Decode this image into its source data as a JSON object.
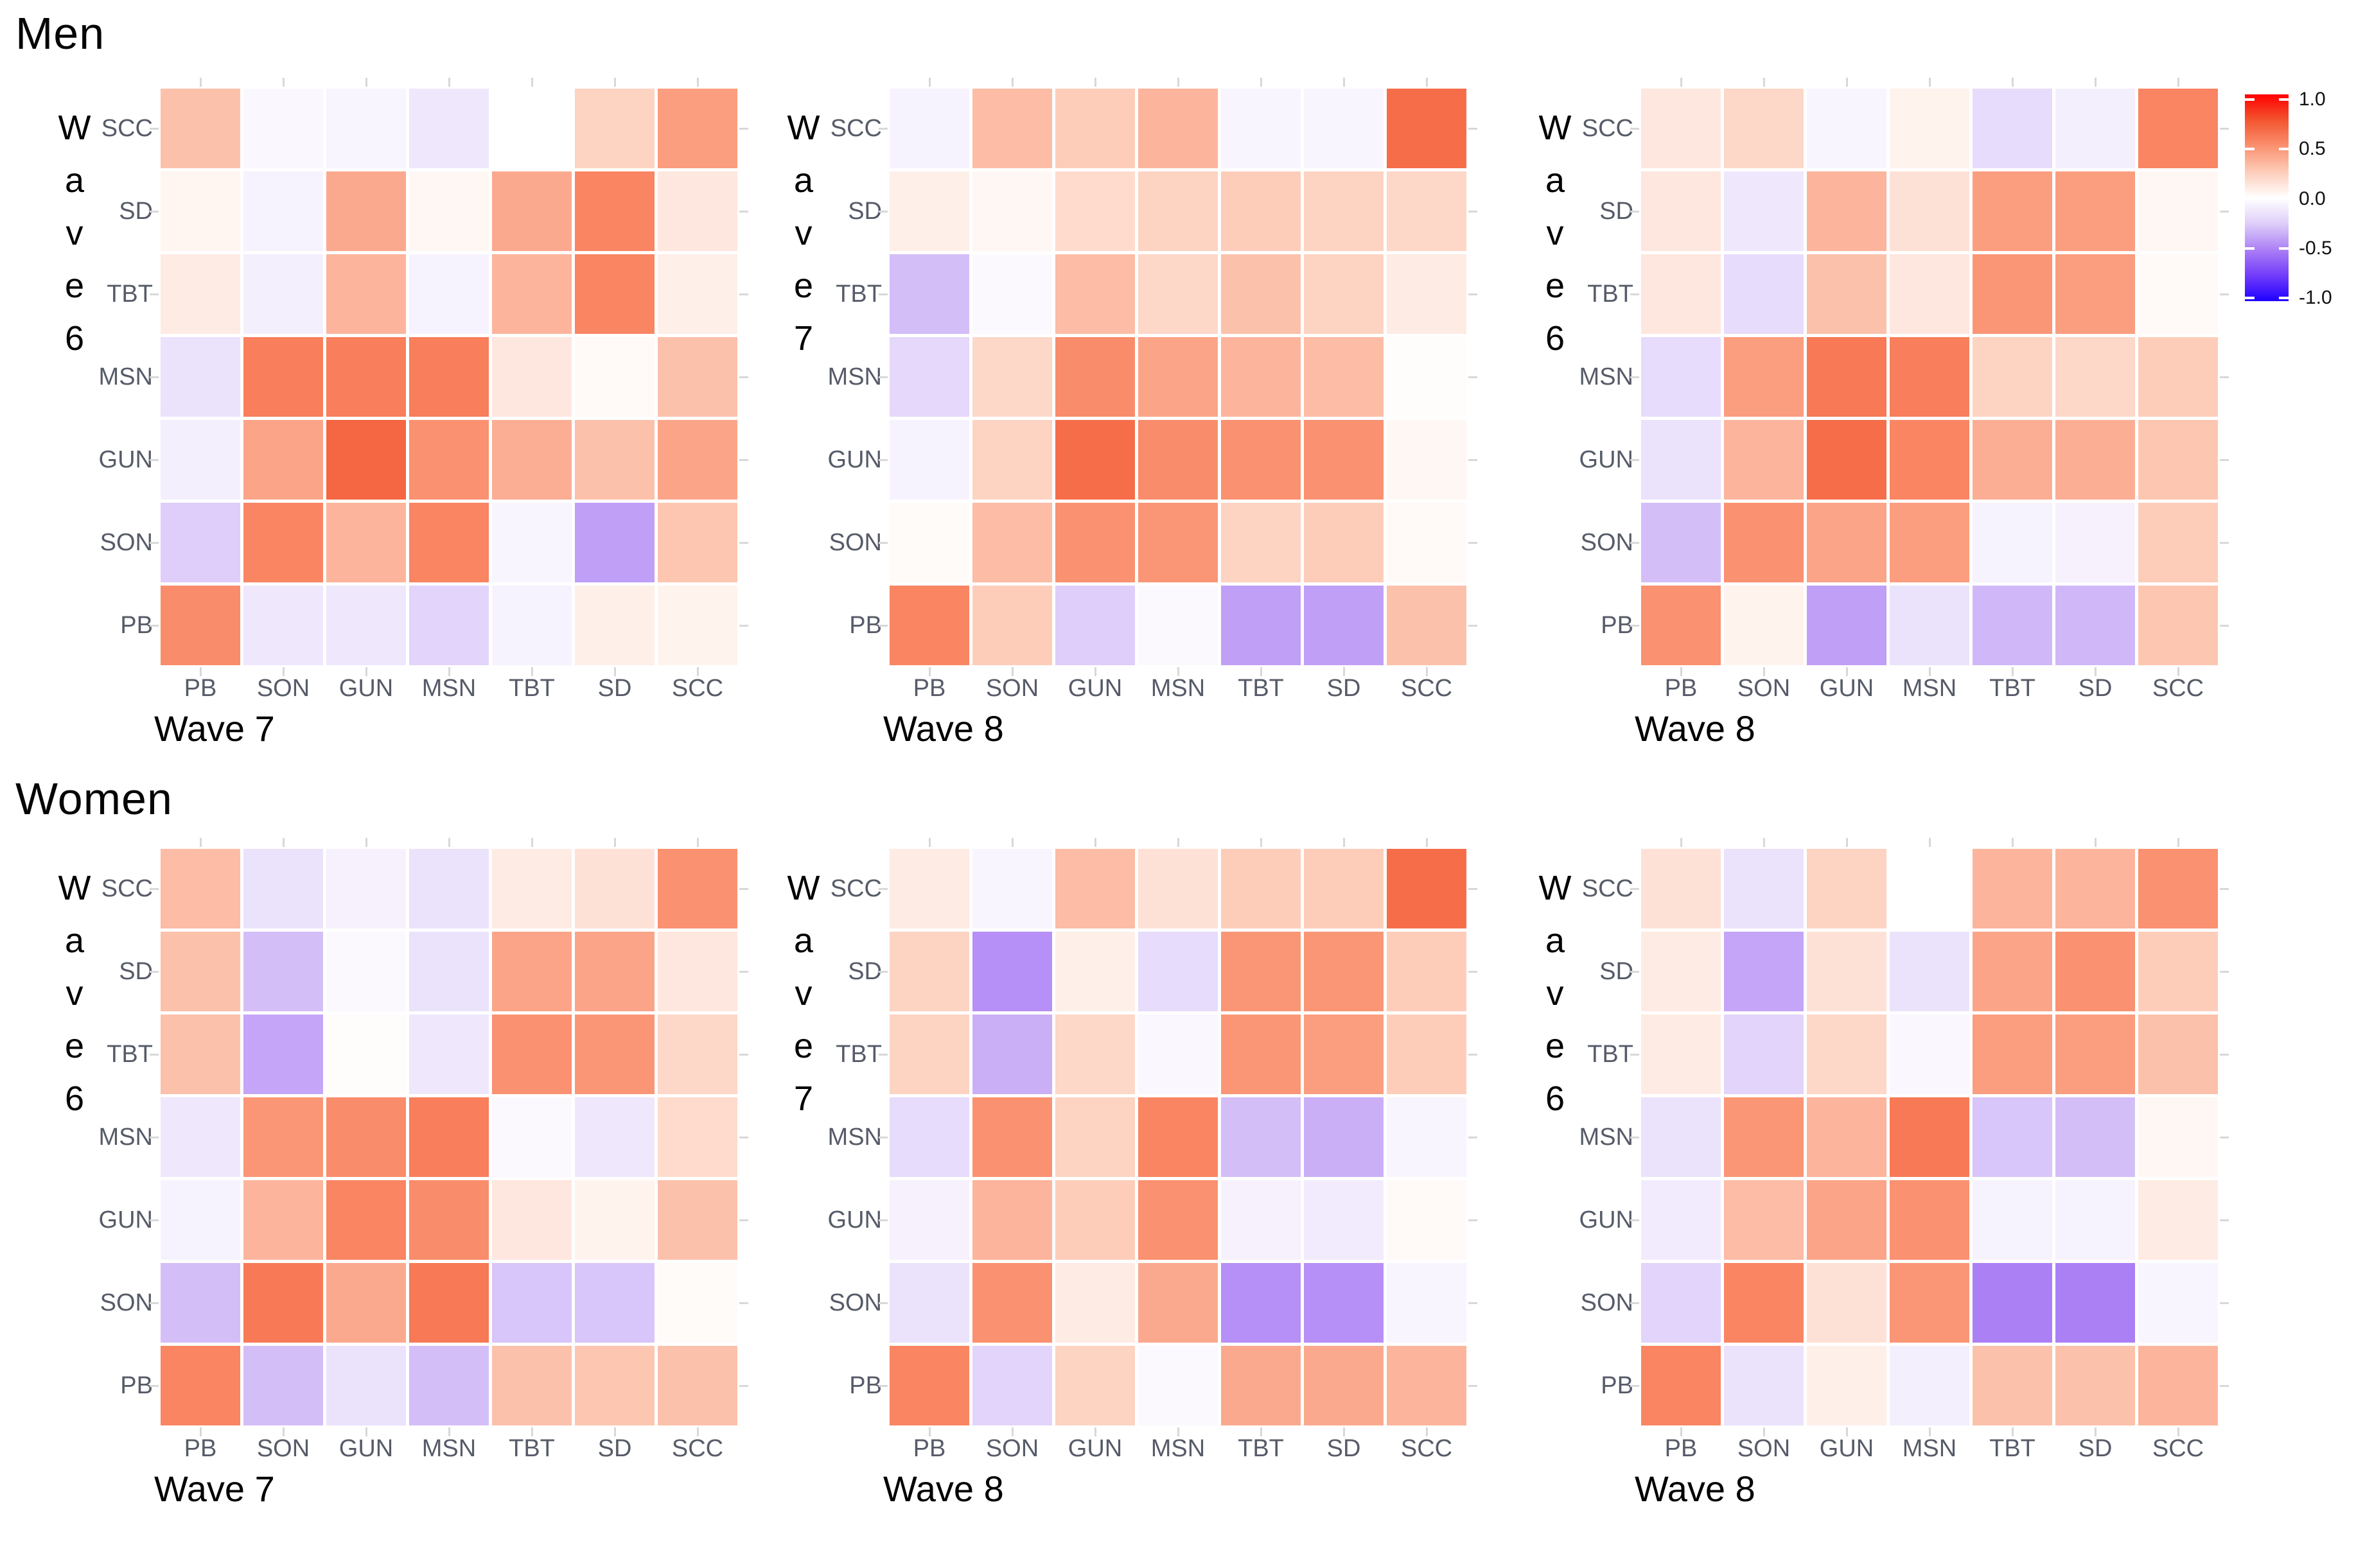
{
  "titles": {
    "men": "Men",
    "women": "Women"
  },
  "legend": {
    "tick_labels": [
      "1.0",
      "0.5",
      "0.0",
      "-0.5",
      "-1.0"
    ],
    "tick_values": [
      1.0,
      0.5,
      0.0,
      -0.5,
      -1.0
    ],
    "high_color": "#ff0000",
    "mid_color": "#ffffff",
    "low_color": "#1e00ff"
  },
  "colormap": {
    "positive_anchors": [
      [
        0,
        "#ffffff"
      ],
      [
        0.25,
        "#fdcdba"
      ],
      [
        0.5,
        "#fa9170"
      ],
      [
        0.75,
        "#f35530"
      ],
      [
        1,
        "#ff0000"
      ]
    ],
    "negative_anchors": [
      [
        0,
        "#ffffff"
      ],
      [
        0.25,
        "#decef9"
      ],
      [
        0.5,
        "#ac80f5"
      ],
      [
        0.75,
        "#733cfa"
      ],
      [
        1,
        "#1e00ff"
      ]
    ]
  },
  "chart_data": {
    "type": "heatmap",
    "description": "Six test-retest correlation heatmaps of smoking/nicotine variables across survey waves, split by sex",
    "value_range": [
      -1,
      1
    ],
    "row_labels_top_to_bottom": [
      "SCC",
      "SD",
      "TBT",
      "MSN",
      "GUN",
      "SON",
      "PB"
    ],
    "col_labels_left_to_right": [
      "PB",
      "SON",
      "GUN",
      "MSN",
      "TBT",
      "SD",
      "SCC"
    ],
    "axis_tick_label_color": "#565b68",
    "panels": [
      {
        "group": "Men",
        "y_axis_label": "Wave 6",
        "x_axis_label": "Wave 7",
        "values": [
          [
            0.3,
            -0.04,
            -0.05,
            -0.12,
            0.0,
            0.22,
            0.45
          ],
          [
            0.05,
            -0.06,
            0.4,
            0.04,
            0.4,
            0.55,
            0.12
          ],
          [
            0.1,
            -0.08,
            0.35,
            -0.06,
            0.35,
            0.55,
            0.08
          ],
          [
            -0.15,
            0.58,
            0.58,
            0.58,
            0.12,
            0.03,
            0.3
          ],
          [
            -0.08,
            0.42,
            0.68,
            0.5,
            0.38,
            0.3,
            0.42
          ],
          [
            -0.25,
            0.55,
            0.35,
            0.55,
            -0.05,
            -0.4,
            0.28
          ],
          [
            0.52,
            -0.12,
            -0.12,
            -0.22,
            -0.06,
            0.08,
            0.06
          ]
        ]
      },
      {
        "group": "Men",
        "y_axis_label": "Wave 7",
        "x_axis_label": "Wave 8",
        "values": [
          [
            -0.06,
            0.32,
            0.25,
            0.35,
            -0.05,
            -0.05,
            0.65
          ],
          [
            0.08,
            0.04,
            0.18,
            0.22,
            0.25,
            0.22,
            0.2
          ],
          [
            -0.3,
            -0.03,
            0.32,
            0.2,
            0.3,
            0.22,
            0.1
          ],
          [
            -0.2,
            0.2,
            0.52,
            0.42,
            0.35,
            0.32,
            0.01
          ],
          [
            -0.06,
            0.22,
            0.65,
            0.52,
            0.5,
            0.5,
            0.04
          ],
          [
            0.02,
            0.32,
            0.5,
            0.48,
            0.22,
            0.25,
            0.03
          ],
          [
            0.55,
            0.25,
            -0.25,
            -0.03,
            -0.4,
            -0.4,
            0.3
          ]
        ]
      },
      {
        "group": "Men",
        "y_axis_label": "Wave 6",
        "x_axis_label": "Wave 8",
        "values": [
          [
            0.12,
            0.2,
            -0.05,
            0.06,
            -0.18,
            -0.08,
            0.55
          ],
          [
            0.12,
            -0.12,
            0.35,
            0.15,
            0.45,
            0.45,
            0.04
          ],
          [
            0.12,
            -0.18,
            0.3,
            0.12,
            0.48,
            0.45,
            0.03
          ],
          [
            -0.18,
            0.45,
            0.6,
            0.58,
            0.22,
            0.2,
            0.25
          ],
          [
            -0.15,
            0.35,
            0.65,
            0.55,
            0.38,
            0.38,
            0.28
          ],
          [
            -0.3,
            0.5,
            0.42,
            0.45,
            -0.06,
            -0.07,
            0.25
          ],
          [
            0.5,
            0.06,
            -0.4,
            -0.15,
            -0.32,
            -0.32,
            0.28
          ]
        ]
      },
      {
        "group": "Women",
        "y_axis_label": "Wave 6",
        "x_axis_label": "Wave 7",
        "values": [
          [
            0.32,
            -0.15,
            -0.07,
            -0.15,
            0.1,
            0.15,
            0.5
          ],
          [
            0.3,
            -0.3,
            -0.03,
            -0.15,
            0.42,
            0.42,
            0.12
          ],
          [
            0.3,
            -0.38,
            0.01,
            -0.12,
            0.5,
            0.48,
            0.2
          ],
          [
            -0.12,
            0.48,
            0.52,
            0.58,
            -0.03,
            -0.12,
            0.18
          ],
          [
            -0.06,
            0.35,
            0.55,
            0.52,
            0.12,
            0.06,
            0.3
          ],
          [
            -0.3,
            0.6,
            0.4,
            0.6,
            -0.28,
            -0.28,
            0.02
          ],
          [
            0.55,
            -0.3,
            -0.15,
            -0.3,
            0.3,
            0.28,
            0.3
          ]
        ]
      },
      {
        "group": "Women",
        "y_axis_label": "Wave 7",
        "x_axis_label": "Wave 8",
        "values": [
          [
            0.1,
            -0.05,
            0.32,
            0.15,
            0.25,
            0.25,
            0.65
          ],
          [
            0.22,
            -0.45,
            0.08,
            -0.18,
            0.48,
            0.48,
            0.25
          ],
          [
            0.22,
            -0.35,
            0.2,
            -0.04,
            0.48,
            0.45,
            0.25
          ],
          [
            -0.18,
            0.5,
            0.22,
            0.55,
            -0.3,
            -0.35,
            -0.05
          ],
          [
            -0.07,
            0.35,
            0.25,
            0.5,
            -0.07,
            -0.1,
            0.03
          ],
          [
            -0.15,
            0.5,
            0.1,
            0.4,
            -0.45,
            -0.45,
            -0.05
          ],
          [
            0.55,
            -0.22,
            0.22,
            -0.03,
            0.4,
            0.4,
            0.35
          ]
        ]
      },
      {
        "group": "Women",
        "y_axis_label": "Wave 6",
        "x_axis_label": "Wave 8",
        "values": [
          [
            0.15,
            -0.15,
            0.22,
            0.0,
            0.35,
            0.35,
            0.5
          ],
          [
            0.1,
            -0.38,
            0.15,
            -0.15,
            0.42,
            0.5,
            0.25
          ],
          [
            0.1,
            -0.22,
            0.2,
            -0.04,
            0.45,
            0.45,
            0.3
          ],
          [
            -0.15,
            0.48,
            0.35,
            0.6,
            -0.28,
            -0.3,
            0.04
          ],
          [
            -0.1,
            0.32,
            0.42,
            0.5,
            -0.06,
            -0.06,
            0.1
          ],
          [
            -0.22,
            0.55,
            0.15,
            0.48,
            -0.5,
            -0.5,
            -0.05
          ],
          [
            0.55,
            -0.15,
            0.08,
            -0.08,
            0.3,
            0.3,
            0.35
          ]
        ]
      }
    ]
  }
}
